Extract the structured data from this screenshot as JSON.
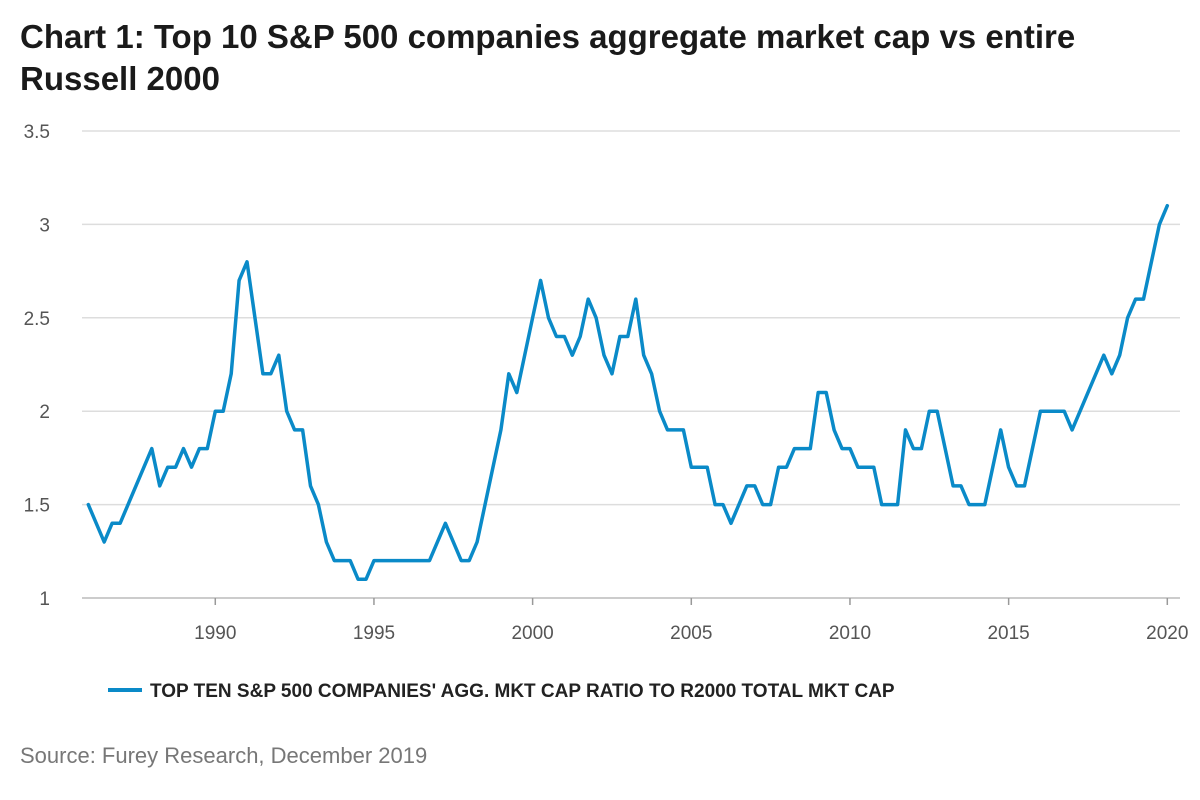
{
  "chart_data": {
    "type": "line",
    "title": "Chart 1: Top 10 S&P 500 companies aggregate market cap vs entire Russell 2000",
    "xlabel": "",
    "ylabel": "",
    "xlim": [
      1985.8,
      2020.4
    ],
    "ylim": [
      1,
      3.5
    ],
    "y_ticks": [
      1,
      1.5,
      2,
      2.5,
      3,
      3.5
    ],
    "y_tick_labels": [
      "1",
      "1.5",
      "2",
      "2.5",
      "3",
      "3.5"
    ],
    "x_ticks": [
      1990,
      1995,
      2000,
      2005,
      2010,
      2015,
      2020
    ],
    "x_tick_labels": [
      "1990",
      "1995",
      "2000",
      "2005",
      "2010",
      "2015",
      "2020"
    ],
    "grid": "horizontal",
    "legend_position": "bottom",
    "line_color": "#0a8ac8",
    "series": [
      {
        "name": "TOP TEN S&P 500 COMPANIES' AGG. MKT CAP RATIO TO R2000 TOTAL MKT CAP",
        "points": [
          [
            1986.0,
            1.5
          ],
          [
            1986.5,
            1.3
          ],
          [
            1986.75,
            1.4
          ],
          [
            1987.0,
            1.4
          ],
          [
            1988.0,
            1.8
          ],
          [
            1988.25,
            1.6
          ],
          [
            1988.5,
            1.7
          ],
          [
            1988.75,
            1.7
          ],
          [
            1989.0,
            1.8
          ],
          [
            1989.25,
            1.7
          ],
          [
            1989.5,
            1.8
          ],
          [
            1989.75,
            1.8
          ],
          [
            1990.0,
            2.0
          ],
          [
            1990.25,
            2.0
          ],
          [
            1990.5,
            2.2
          ],
          [
            1990.75,
            2.7
          ],
          [
            1991.0,
            2.8
          ],
          [
            1991.5,
            2.2
          ],
          [
            1991.75,
            2.2
          ],
          [
            1992.0,
            2.3
          ],
          [
            1992.25,
            2.0
          ],
          [
            1992.5,
            1.9
          ],
          [
            1992.75,
            1.9
          ],
          [
            1993.0,
            1.6
          ],
          [
            1993.25,
            1.5
          ],
          [
            1993.5,
            1.3
          ],
          [
            1993.75,
            1.2
          ],
          [
            1994.0,
            1.2
          ],
          [
            1994.25,
            1.2
          ],
          [
            1994.5,
            1.1
          ],
          [
            1994.75,
            1.1
          ],
          [
            1995.0,
            1.2
          ],
          [
            1995.25,
            1.2
          ],
          [
            1995.5,
            1.2
          ],
          [
            1996.0,
            1.2
          ],
          [
            1996.5,
            1.2
          ],
          [
            1996.75,
            1.2
          ],
          [
            1997.25,
            1.4
          ],
          [
            1997.75,
            1.2
          ],
          [
            1998.0,
            1.2
          ],
          [
            1998.25,
            1.3
          ],
          [
            1999.0,
            1.9
          ],
          [
            1999.25,
            2.2
          ],
          [
            1999.5,
            2.1
          ],
          [
            2000.0,
            2.5
          ],
          [
            2000.25,
            2.7
          ],
          [
            2000.5,
            2.5
          ],
          [
            2000.75,
            2.4
          ],
          [
            2001.0,
            2.4
          ],
          [
            2001.25,
            2.3
          ],
          [
            2001.5,
            2.4
          ],
          [
            2001.75,
            2.6
          ],
          [
            2002.0,
            2.5
          ],
          [
            2002.25,
            2.3
          ],
          [
            2002.5,
            2.2
          ],
          [
            2002.75,
            2.4
          ],
          [
            2003.0,
            2.4
          ],
          [
            2003.25,
            2.6
          ],
          [
            2003.5,
            2.3
          ],
          [
            2003.75,
            2.2
          ],
          [
            2004.0,
            2.0
          ],
          [
            2004.25,
            1.9
          ],
          [
            2004.5,
            1.9
          ],
          [
            2004.75,
            1.9
          ],
          [
            2005.0,
            1.7
          ],
          [
            2005.25,
            1.7
          ],
          [
            2005.5,
            1.7
          ],
          [
            2005.75,
            1.5
          ],
          [
            2006.0,
            1.5
          ],
          [
            2006.25,
            1.4
          ],
          [
            2006.75,
            1.6
          ],
          [
            2007.0,
            1.6
          ],
          [
            2007.25,
            1.5
          ],
          [
            2007.5,
            1.5
          ],
          [
            2007.75,
            1.7
          ],
          [
            2008.0,
            1.7
          ],
          [
            2008.25,
            1.8
          ],
          [
            2008.5,
            1.8
          ],
          [
            2008.75,
            1.8
          ],
          [
            2009.0,
            2.1
          ],
          [
            2009.25,
            2.1
          ],
          [
            2009.5,
            1.9
          ],
          [
            2009.75,
            1.8
          ],
          [
            2010.0,
            1.8
          ],
          [
            2010.25,
            1.7
          ],
          [
            2010.5,
            1.7
          ],
          [
            2010.75,
            1.7
          ],
          [
            2011.0,
            1.5
          ],
          [
            2011.25,
            1.5
          ],
          [
            2011.5,
            1.5
          ],
          [
            2011.75,
            1.9
          ],
          [
            2012.0,
            1.8
          ],
          [
            2012.25,
            1.8
          ],
          [
            2012.5,
            2.0
          ],
          [
            2012.75,
            2.0
          ],
          [
            2013.25,
            1.6
          ],
          [
            2013.5,
            1.6
          ],
          [
            2013.75,
            1.5
          ],
          [
            2014.0,
            1.5
          ],
          [
            2014.25,
            1.5
          ],
          [
            2014.75,
            1.9
          ],
          [
            2015.0,
            1.7
          ],
          [
            2015.25,
            1.6
          ],
          [
            2015.5,
            1.6
          ],
          [
            2016.0,
            2.0
          ],
          [
            2016.25,
            2.0
          ],
          [
            2016.75,
            2.0
          ],
          [
            2017.0,
            1.9
          ],
          [
            2018.0,
            2.3
          ],
          [
            2018.25,
            2.2
          ],
          [
            2018.5,
            2.3
          ],
          [
            2018.75,
            2.5
          ],
          [
            2019.0,
            2.6
          ],
          [
            2019.25,
            2.6
          ],
          [
            2019.75,
            3.0
          ],
          [
            2020.0,
            3.1
          ]
        ]
      }
    ]
  },
  "footer": {
    "source": "Source: Furey Research, December 2019"
  }
}
